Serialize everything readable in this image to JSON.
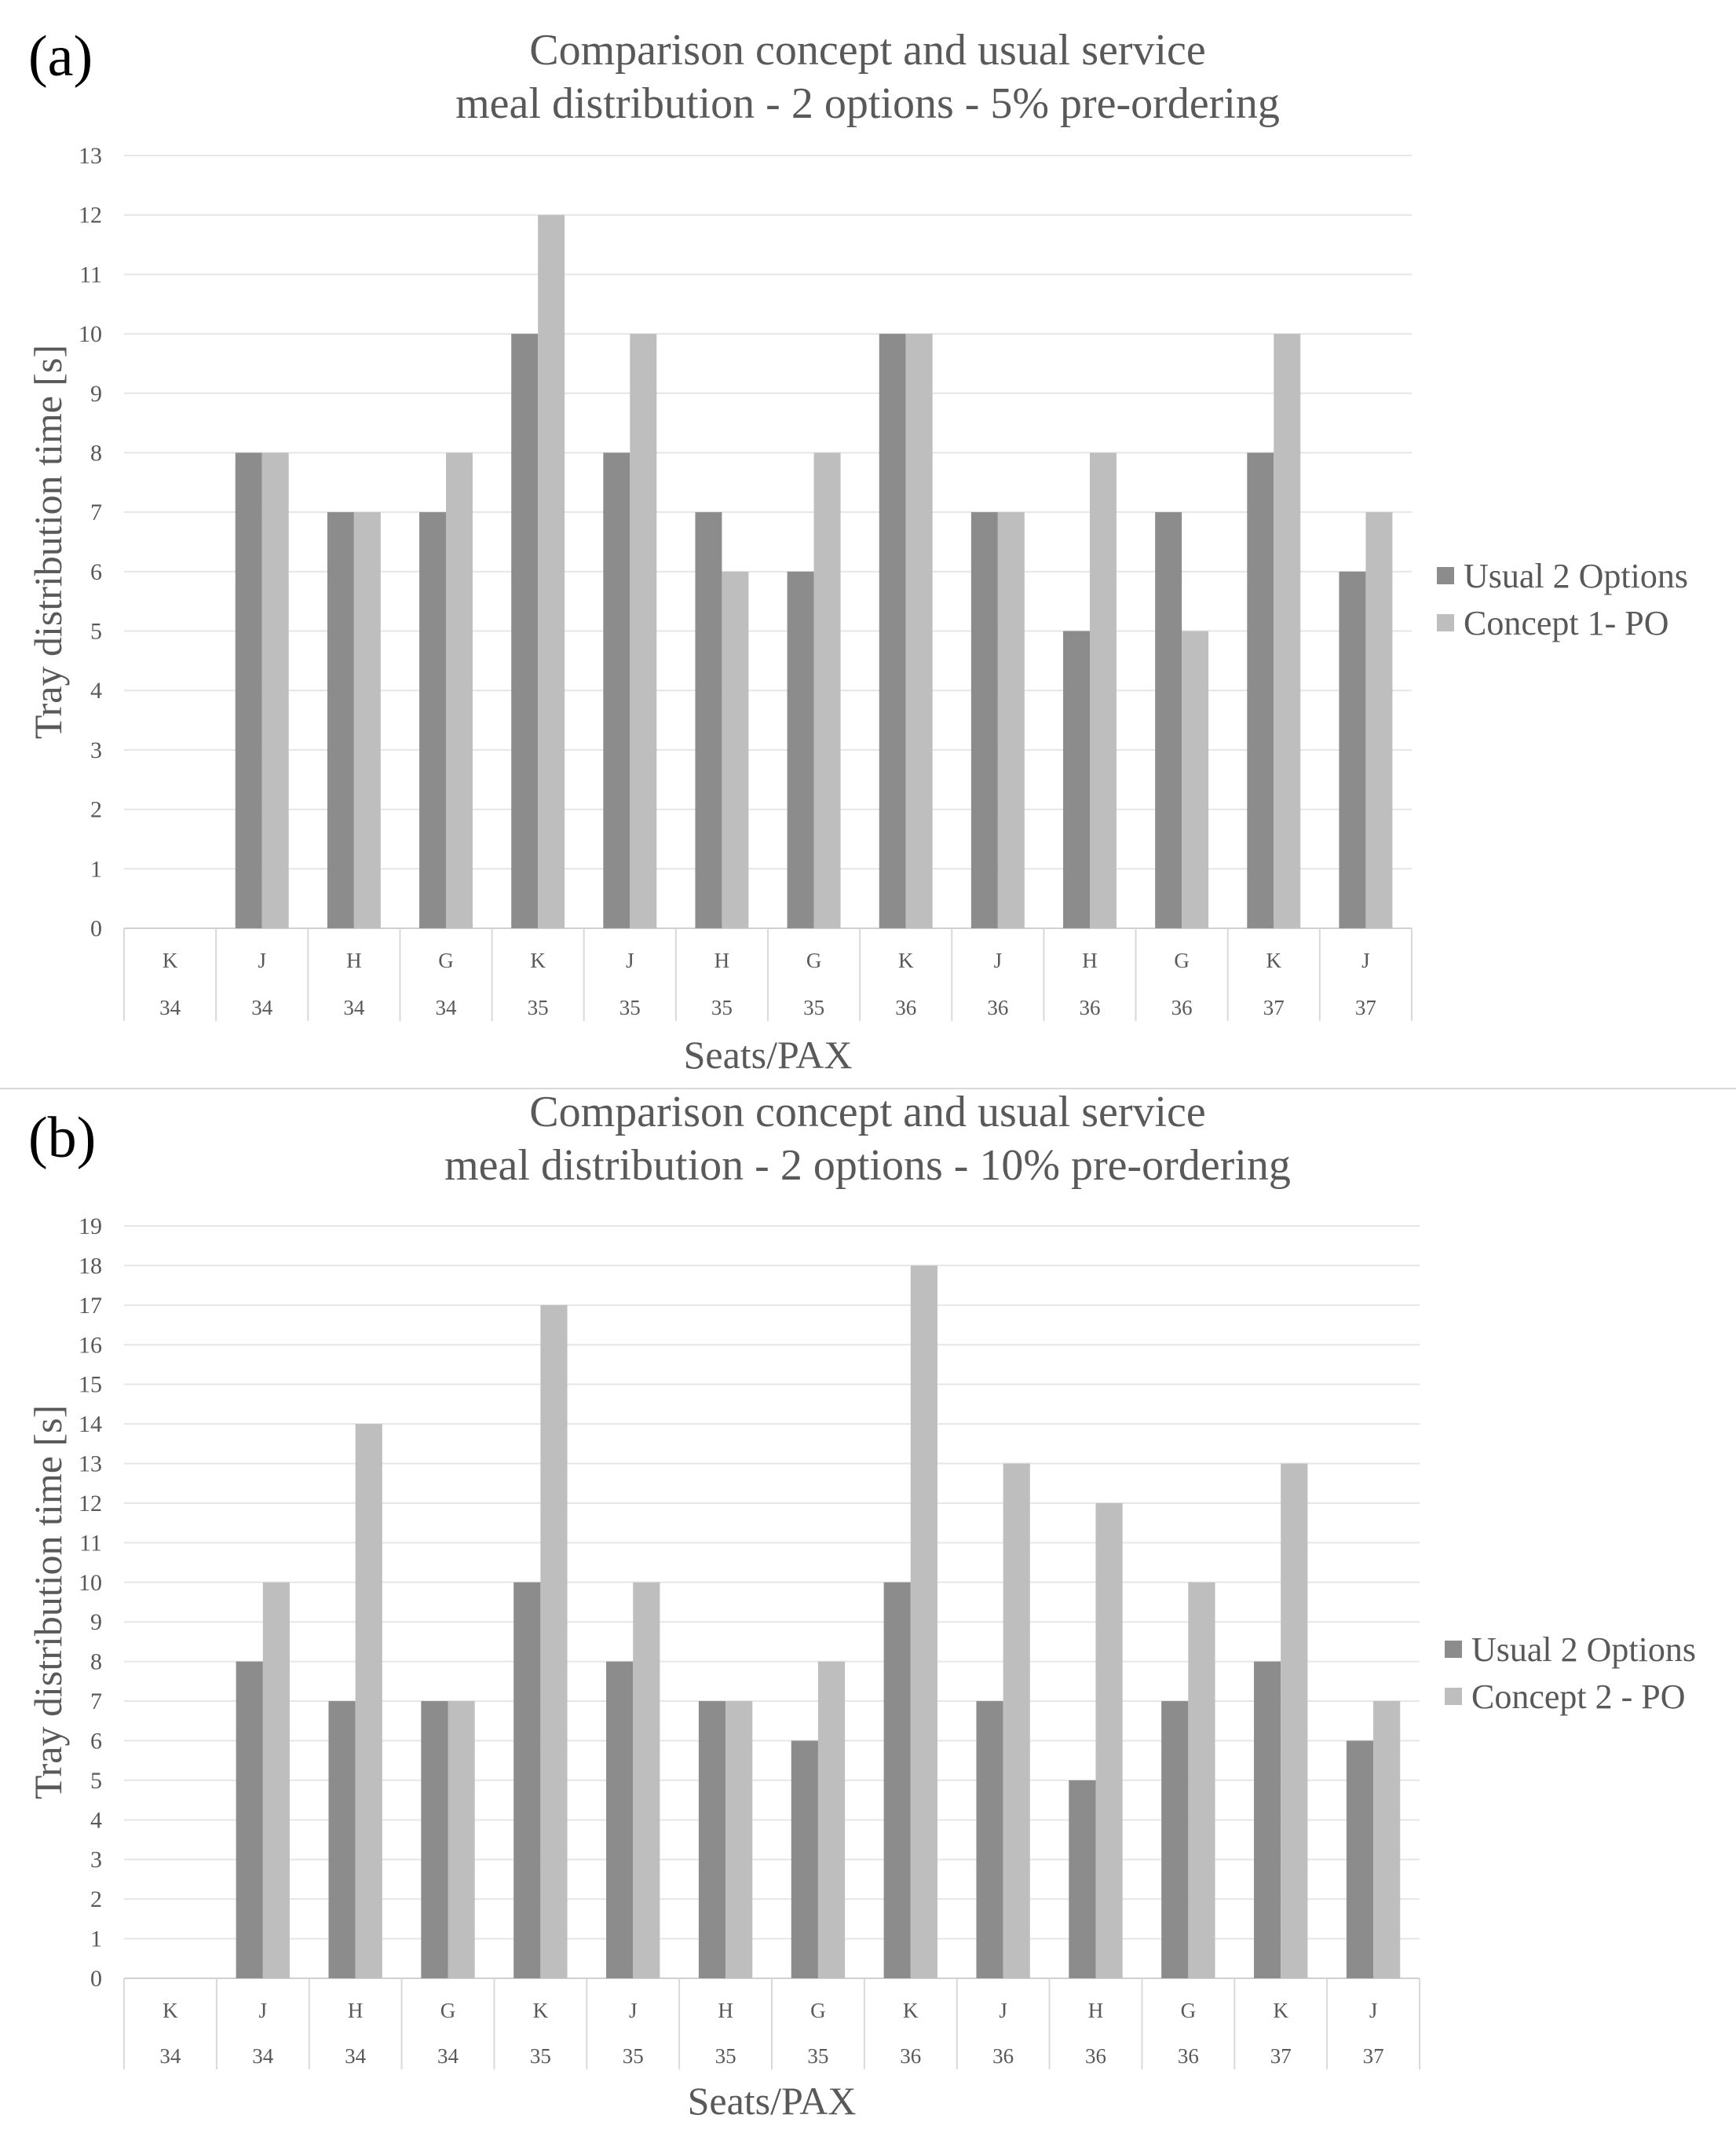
{
  "colors": {
    "usual": "#8c8c8c",
    "concept": "#bebebe",
    "grid": "#e6e6e6",
    "text": "#595959"
  },
  "chart_data": [
    {
      "panel_label": "(a)",
      "type": "bar",
      "title": [
        "Comparison concept and usual service",
        "meal distribution - 2 options - 5% pre-ordering"
      ],
      "xlabel": "Seats/PAX",
      "ylabel": "Tray distribution time [s]",
      "ylim": [
        0,
        13
      ],
      "yticks": [
        "0",
        "1",
        "2",
        "3",
        "4",
        "5",
        "6",
        "7",
        "8",
        "9",
        "10",
        "11",
        "12",
        "13"
      ],
      "categories": [
        {
          "seat": "K",
          "row": "34"
        },
        {
          "seat": "J",
          "row": "34"
        },
        {
          "seat": "H",
          "row": "34"
        },
        {
          "seat": "G",
          "row": "34"
        },
        {
          "seat": "K",
          "row": "35"
        },
        {
          "seat": "J",
          "row": "35"
        },
        {
          "seat": "H",
          "row": "35"
        },
        {
          "seat": "G",
          "row": "35"
        },
        {
          "seat": "K",
          "row": "36"
        },
        {
          "seat": "J",
          "row": "36"
        },
        {
          "seat": "H",
          "row": "36"
        },
        {
          "seat": "G",
          "row": "36"
        },
        {
          "seat": "K",
          "row": "37"
        },
        {
          "seat": "J",
          "row": "37"
        }
      ],
      "series": [
        {
          "name": "Usual 2 Options",
          "values": [
            0,
            8,
            7,
            7,
            10,
            8,
            7,
            6,
            10,
            7,
            5,
            7,
            8,
            6
          ]
        },
        {
          "name": "Concept 1- PO",
          "values": [
            0,
            8,
            7,
            8,
            12,
            10,
            6,
            8,
            10,
            7,
            8,
            5,
            10,
            7
          ]
        }
      ]
    },
    {
      "panel_label": "(b)",
      "type": "bar",
      "title": [
        "Comparison concept and usual service",
        "meal distribution - 2 options - 10% pre-ordering"
      ],
      "xlabel": "Seats/PAX",
      "ylabel": "Tray distribution time [s]",
      "ylim": [
        0,
        19
      ],
      "yticks": [
        "0",
        "1",
        "2",
        "3",
        "4",
        "5",
        "6",
        "7",
        "8",
        "9",
        "10",
        "11",
        "12",
        "13",
        "14",
        "15",
        "16",
        "17",
        "18",
        "19"
      ],
      "categories": [
        {
          "seat": "K",
          "row": "34"
        },
        {
          "seat": "J",
          "row": "34"
        },
        {
          "seat": "H",
          "row": "34"
        },
        {
          "seat": "G",
          "row": "34"
        },
        {
          "seat": "K",
          "row": "35"
        },
        {
          "seat": "J",
          "row": "35"
        },
        {
          "seat": "H",
          "row": "35"
        },
        {
          "seat": "G",
          "row": "35"
        },
        {
          "seat": "K",
          "row": "36"
        },
        {
          "seat": "J",
          "row": "36"
        },
        {
          "seat": "H",
          "row": "36"
        },
        {
          "seat": "G",
          "row": "36"
        },
        {
          "seat": "K",
          "row": "37"
        },
        {
          "seat": "J",
          "row": "37"
        }
      ],
      "series": [
        {
          "name": "Usual 2 Options",
          "values": [
            0,
            8,
            7,
            7,
            10,
            8,
            7,
            6,
            10,
            7,
            5,
            7,
            8,
            6
          ]
        },
        {
          "name": "Concept 2 - PO",
          "values": [
            0,
            10,
            14,
            7,
            17,
            10,
            7,
            8,
            18,
            13,
            12,
            10,
            13,
            7
          ]
        }
      ]
    }
  ]
}
